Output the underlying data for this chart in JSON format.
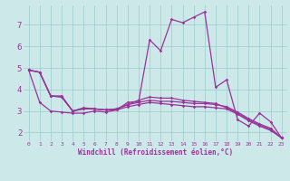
{
  "background_color": "#cce8e8",
  "grid_color": "#99cccc",
  "line_color": "#993399",
  "xlim": [
    -0.5,
    23.5
  ],
  "ylim": [
    1.6,
    7.9
  ],
  "x_ticks": [
    0,
    1,
    2,
    3,
    4,
    5,
    6,
    7,
    8,
    9,
    10,
    11,
    12,
    13,
    14,
    15,
    16,
    17,
    18,
    19,
    20,
    21,
    22,
    23
  ],
  "y_ticks": [
    2,
    3,
    4,
    5,
    6,
    7
  ],
  "xlabel": "Windchill (Refroidissement éolien,°C)",
  "series": [
    [
      4.9,
      4.8,
      3.7,
      3.7,
      3.0,
      3.15,
      3.1,
      3.05,
      3.05,
      3.4,
      3.45,
      6.3,
      5.8,
      7.25,
      7.1,
      7.35,
      7.6,
      4.1,
      4.45,
      2.6,
      2.3,
      2.9,
      2.5,
      1.75
    ],
    [
      4.9,
      3.4,
      3.0,
      2.95,
      2.9,
      2.9,
      3.0,
      2.95,
      3.05,
      3.2,
      3.3,
      3.4,
      3.35,
      3.3,
      3.25,
      3.2,
      3.2,
      3.15,
      3.1,
      2.85,
      2.55,
      2.3,
      2.1,
      1.75
    ],
    [
      4.9,
      4.8,
      3.7,
      3.65,
      3.0,
      3.1,
      3.1,
      3.05,
      3.1,
      3.3,
      3.4,
      3.5,
      3.45,
      3.45,
      3.4,
      3.35,
      3.35,
      3.3,
      3.2,
      2.95,
      2.65,
      2.4,
      2.2,
      1.75
    ],
    [
      4.9,
      4.8,
      3.7,
      3.65,
      3.0,
      3.1,
      3.1,
      3.05,
      3.1,
      3.3,
      3.5,
      3.65,
      3.6,
      3.6,
      3.5,
      3.45,
      3.4,
      3.35,
      3.15,
      2.9,
      2.6,
      2.35,
      2.15,
      1.75
    ]
  ]
}
